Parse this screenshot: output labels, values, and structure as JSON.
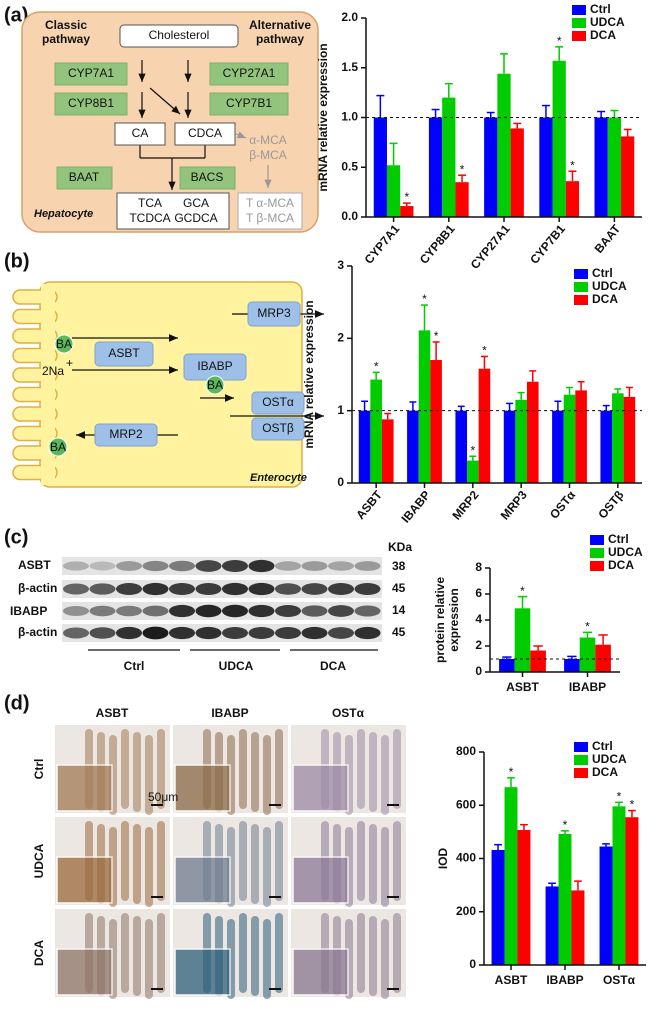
{
  "panel_labels": [
    "(a)",
    "(b)",
    "(c)",
    "(d)"
  ],
  "diagram_a": {
    "left_header": [
      "Classic",
      "pathway"
    ],
    "right_header": [
      "Alternative",
      "pathway"
    ],
    "cholesterol": "Cholesterol",
    "enzymes": [
      "CYP7A1",
      "CYP8B1",
      "CYP27A1",
      "CYP7B1"
    ],
    "ca": "CA",
    "cdca": "CDCA",
    "mca": [
      "α-MCA",
      "β-MCA"
    ],
    "conjugating": [
      "BAAT",
      "BACS"
    ],
    "conjugates": [
      [
        "TCA",
        "GCA"
      ],
      [
        "TCDCA",
        "GCDCA"
      ]
    ],
    "tmca": [
      "T α-MCA",
      "T β-MCA"
    ],
    "cell": "Hepatocyte"
  },
  "diagram_b": {
    "ba": "BA",
    "transporters": [
      "ASBT",
      "MRP3",
      "IBABP",
      "OSTα",
      "OSTβ",
      "MRP2"
    ],
    "sodium": "2Na",
    "sodium_charge": "+",
    "cell": "Enterocyte"
  },
  "blot_c": {
    "rows": [
      "ASBT",
      "β-actin",
      "IBABP",
      "β-actin"
    ],
    "unit": "KDa",
    "sizes": [
      38,
      45,
      14,
      45
    ],
    "groups": [
      "Ctrl",
      "UDCA",
      "DCA"
    ]
  },
  "histology_d": {
    "columns": [
      "ASBT",
      "IBABP",
      "OSTα"
    ],
    "rows": [
      "Ctrl",
      "UDCA",
      "DCA"
    ],
    "scale": "50μm"
  },
  "chart_data": [
    {
      "type": "bar",
      "y_label": [
        "mRNA relative expression"
      ],
      "categories": [
        "CYP7A1",
        "CYP8B1",
        "CYP27A1",
        "CYP7B1",
        "BAAT"
      ],
      "series": [
        {
          "name": "Ctrl",
          "color": "#0000ff",
          "values": [
            1.0,
            1.0,
            1.0,
            1.0,
            1.0
          ],
          "errors": [
            0.22,
            0.08,
            0.05,
            0.12,
            0.06
          ]
        },
        {
          "name": "UDCA",
          "color": "#00cc00",
          "values": [
            0.52,
            1.2,
            1.44,
            1.57,
            1.0
          ],
          "errors": [
            0.22,
            0.14,
            0.2,
            0.14,
            0.07
          ],
          "stars": [
            null,
            null,
            null,
            "*",
            null
          ]
        },
        {
          "name": "DCA",
          "color": "#ff0000",
          "values": [
            0.11,
            0.35,
            0.89,
            0.36,
            0.81
          ],
          "errors": [
            0.03,
            0.07,
            0.05,
            0.1,
            0.07
          ],
          "stars": [
            "*",
            "*",
            null,
            "*",
            null
          ]
        }
      ],
      "ylim": [
        0,
        2
      ],
      "yticks": [
        {
          "value": 0,
          "label": "0.0"
        },
        0.5,
        {
          "value": 1,
          "label": "1.0"
        },
        1.5,
        {
          "value": 2,
          "label": "2.0"
        }
      ],
      "reference_line": 1
    },
    {
      "type": "bar",
      "y_label": [
        "mRNA relative expression"
      ],
      "categories": [
        "ASBT",
        "IBABP",
        "MRP2",
        "MRP3",
        "OSTα",
        "OSTβ"
      ],
      "series": [
        {
          "name": "Ctrl",
          "color": "#0000ff",
          "values": [
            1.0,
            1.0,
            1.0,
            1.0,
            1.0,
            1.0
          ],
          "errors": [
            0.13,
            0.12,
            0.06,
            0.1,
            0.13,
            0.07
          ]
        },
        {
          "name": "UDCA",
          "color": "#00cc00",
          "values": [
            1.43,
            2.11,
            0.31,
            1.15,
            1.22,
            1.24
          ],
          "errors": [
            0.1,
            0.35,
            0.06,
            0.1,
            0.1,
            0.06
          ],
          "stars": [
            "*",
            "*",
            "*",
            null,
            null,
            null
          ]
        },
        {
          "name": "DCA",
          "color": "#ff0000",
          "values": [
            0.88,
            1.7,
            1.58,
            1.4,
            1.28,
            1.19
          ],
          "errors": [
            0.08,
            0.25,
            0.17,
            0.15,
            0.12,
            0.13
          ],
          "stars": [
            null,
            "*",
            "*",
            null,
            null,
            null
          ]
        }
      ],
      "ylim": [
        0,
        3
      ],
      "yticks": [
        0,
        1,
        2,
        3
      ],
      "reference_line": 1
    },
    {
      "type": "bar",
      "y_label": [
        "protein relative",
        "expression"
      ],
      "categories": [
        "ASBT",
        "IBABP"
      ],
      "series": [
        {
          "name": "Ctrl",
          "color": "#0000ff",
          "values": [
            1.0,
            1.0
          ],
          "errors": [
            0.15,
            0.2
          ]
        },
        {
          "name": "UDCA",
          "color": "#00cc00",
          "values": [
            4.9,
            2.65
          ],
          "errors": [
            0.9,
            0.4
          ],
          "stars": [
            "*",
            "*"
          ]
        },
        {
          "name": "DCA",
          "color": "#ff0000",
          "values": [
            1.65,
            2.1
          ],
          "errors": [
            0.35,
            0.75
          ]
        }
      ],
      "ylim": [
        0,
        8
      ],
      "yticks": [
        0,
        2,
        4,
        6,
        8
      ],
      "reference_line": 1
    },
    {
      "type": "bar",
      "y_label": [
        "IOD"
      ],
      "categories": [
        "ASBT",
        "IBABP",
        "OSTα"
      ],
      "series": [
        {
          "name": "Ctrl",
          "color": "#0000ff",
          "values": [
            432,
            295,
            445
          ],
          "errors": [
            20,
            12,
            10
          ]
        },
        {
          "name": "UDCA",
          "color": "#00cc00",
          "values": [
            668,
            492,
            596
          ],
          "errors": [
            35,
            12,
            15
          ],
          "stars": [
            "*",
            "*",
            "*"
          ]
        },
        {
          "name": "DCA",
          "color": "#ff0000",
          "values": [
            507,
            280,
            555
          ],
          "errors": [
            20,
            35,
            25
          ],
          "stars": [
            null,
            null,
            "*"
          ]
        }
      ],
      "ylim": [
        0,
        800
      ],
      "yticks": [
        0,
        200,
        400,
        600,
        800
      ]
    }
  ]
}
